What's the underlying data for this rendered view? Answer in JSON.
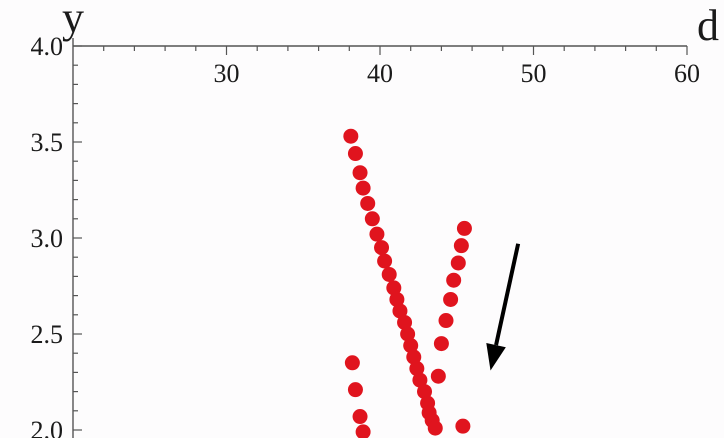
{
  "chart_data": {
    "type": "scatter",
    "title": "",
    "xlabel": "d",
    "ylabel": "y",
    "xlim": [
      20,
      60
    ],
    "ylim": [
      2.0,
      4.0
    ],
    "x_axis_position": "top",
    "xticks": [
      30,
      40,
      50,
      60
    ],
    "yticks": [
      2.0,
      2.5,
      3.0,
      3.5,
      4.0
    ],
    "xtick_labels": [
      "30",
      "40",
      "50",
      "60"
    ],
    "ytick_labels": [
      "2.0",
      "2.5",
      "3.0",
      "3.5",
      "4.0"
    ],
    "grid": false,
    "legend": "none",
    "point_color": "#e0141e",
    "arrow": {
      "from": [
        49.0,
        2.97
      ],
      "to": [
        47.2,
        2.31
      ],
      "color": "#000000"
    },
    "series": [
      {
        "points": [
          [
            38.1,
            3.53
          ],
          [
            38.4,
            3.44
          ],
          [
            38.7,
            3.34
          ],
          [
            38.9,
            3.26
          ],
          [
            39.2,
            3.18
          ],
          [
            39.5,
            3.1
          ],
          [
            39.8,
            3.02
          ],
          [
            40.1,
            2.95
          ],
          [
            40.3,
            2.88
          ],
          [
            40.6,
            2.81
          ],
          [
            40.9,
            2.74
          ],
          [
            41.1,
            2.68
          ],
          [
            41.3,
            2.62
          ],
          [
            41.6,
            2.56
          ],
          [
            41.8,
            2.5
          ],
          [
            42.0,
            2.44
          ],
          [
            42.2,
            2.38
          ],
          [
            42.4,
            2.32
          ],
          [
            42.6,
            2.26
          ],
          [
            42.9,
            2.2
          ],
          [
            43.1,
            2.14
          ],
          [
            43.2,
            2.09
          ],
          [
            43.4,
            2.05
          ],
          [
            43.6,
            2.01
          ]
        ]
      },
      {
        "points": [
          [
            45.5,
            3.05
          ],
          [
            45.3,
            2.96
          ],
          [
            45.1,
            2.87
          ],
          [
            44.8,
            2.78
          ],
          [
            44.6,
            2.68
          ],
          [
            44.3,
            2.57
          ],
          [
            44.0,
            2.45
          ],
          [
            43.8,
            2.28
          ]
        ]
      },
      {
        "points": [
          [
            38.2,
            2.35
          ],
          [
            38.4,
            2.21
          ],
          [
            38.7,
            2.07
          ],
          [
            45.4,
            2.02
          ],
          [
            38.9,
            1.99
          ]
        ]
      }
    ]
  }
}
